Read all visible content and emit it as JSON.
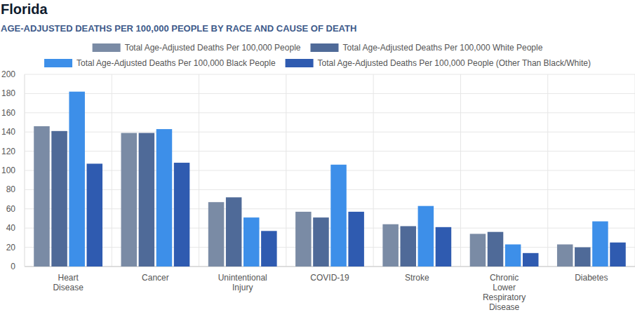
{
  "chart_data": {
    "type": "bar",
    "title": "Florida",
    "subtitle": "AGE-ADJUSTED DEATHS PER 100,000 PEOPLE BY RACE AND CAUSE OF DEATH",
    "categories": [
      "Heart Disease",
      "Cancer",
      "Unintentional Injury",
      "COVID-19",
      "Stroke",
      "Chronic Lower Respiratory Disease",
      "Diabetes"
    ],
    "series": [
      {
        "name": "Total Age-Adjusted Deaths Per 100,000 People",
        "color": "#7a8ba5",
        "values": [
          146,
          139,
          67,
          57,
          44,
          34,
          23
        ]
      },
      {
        "name": "Total Age-Adjusted Deaths Per 100,000 White People",
        "color": "#4f6a98",
        "values": [
          141,
          139,
          72,
          51,
          42,
          36,
          20
        ]
      },
      {
        "name": "Total Age-Adjusted Deaths Per 100,000 Black People",
        "color": "#3d8fe9",
        "values": [
          182,
          143,
          51,
          106,
          63,
          23,
          47
        ]
      },
      {
        "name": "Total Age-Adjusted Deaths Per 100,000 People (Other Than Black/White)",
        "color": "#2f5bb0",
        "values": [
          107,
          108,
          37,
          57,
          41,
          14,
          25
        ]
      }
    ],
    "ylim": [
      0,
      200
    ],
    "yticks": [
      0,
      20,
      40,
      60,
      80,
      100,
      120,
      140,
      160,
      180,
      200
    ],
    "grid": true,
    "legend": "top"
  }
}
